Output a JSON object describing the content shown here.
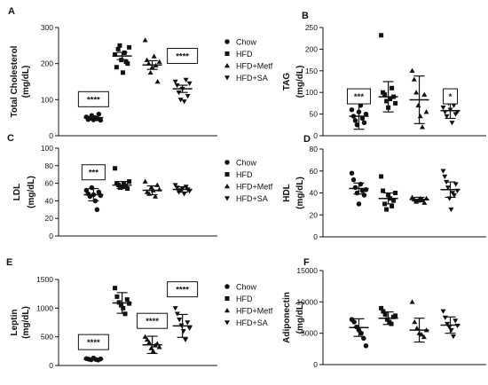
{
  "legend_items": [
    {
      "label": "Chow",
      "marker": "circle"
    },
    {
      "label": "HFD",
      "marker": "square"
    },
    {
      "label": "HFD+Metf",
      "marker": "triangle"
    },
    {
      "label": "HFD+SA",
      "marker": "triangle-down"
    }
  ],
  "chart_data": [
    {
      "panel": "A",
      "type": "scatter",
      "ylabel": "Total Cholesterol",
      "yunit": "(mg/dL)",
      "ylim": [
        0,
        300
      ],
      "yticks": [
        0,
        100,
        200,
        300
      ],
      "categories": [
        "Chow",
        "HFD",
        "HFD+Metf",
        "HFD+SA"
      ],
      "points": [
        [
          52,
          45,
          48,
          56,
          44,
          50,
          47,
          60,
          43
        ],
        [
          225,
          190,
          240,
          250,
          210,
          175,
          230,
          205,
          200,
          245
        ],
        [
          265,
          210,
          200,
          175,
          190,
          220,
          195,
          150,
          205
        ],
        [
          150,
          140,
          120,
          100,
          130,
          95,
          155,
          110,
          145
        ]
      ],
      "means": [
        50,
        221,
        196,
        130
      ],
      "errors": [
        3,
        10,
        12,
        10
      ],
      "annotations": [
        {
          "group": 0,
          "text": "****",
          "y": 100
        },
        {
          "group": 3,
          "text": "****",
          "y": 220
        }
      ]
    },
    {
      "panel": "B",
      "type": "scatter",
      "ylabel": "TAG",
      "yunit": "(mg/dL)",
      "ylim": [
        0,
        250
      ],
      "yticks": [
        0,
        50,
        100,
        150,
        200,
        250
      ],
      "categories": [
        "Chow",
        "HFD",
        "HFD+Metf",
        "HFD+SA"
      ],
      "points": [
        [
          60,
          45,
          35,
          25,
          55,
          70,
          40,
          30,
          50
        ],
        [
          232,
          100,
          95,
          80,
          65,
          85,
          110,
          90,
          75
        ],
        [
          150,
          130,
          100,
          70,
          45,
          20,
          95,
          55
        ],
        [
          65,
          55,
          45,
          75,
          60,
          30,
          70,
          50,
          55
        ]
      ],
      "means": [
        45,
        90,
        83,
        58
      ],
      "errors": [
        30,
        35,
        55,
        18
      ],
      "annotations": [
        {
          "group": 0,
          "text": "***",
          "y": 90
        },
        {
          "group": 3,
          "text": "*",
          "y": 90
        }
      ]
    },
    {
      "panel": "C",
      "type": "scatter",
      "ylabel": "LDL",
      "yunit": "(mg/dL)",
      "ylim": [
        0,
        100
      ],
      "yticks": [
        0,
        20,
        40,
        60,
        80,
        100
      ],
      "categories": [
        "Chow",
        "HFD",
        "HFD+Metf",
        "HFD+SA"
      ],
      "points": [
        [
          52,
          48,
          45,
          55,
          47,
          40,
          30,
          50,
          46
        ],
        [
          77,
          60,
          58,
          55,
          56,
          59,
          57,
          54,
          62
        ],
        [
          62,
          50,
          48,
          55,
          52,
          45,
          58,
          53
        ],
        [
          58,
          55,
          50,
          52,
          54,
          48,
          56,
          53,
          51
        ]
      ],
      "means": [
        47,
        58,
        52,
        53
      ],
      "errors": [
        7,
        4,
        5,
        3
      ],
      "annotations": [
        {
          "group": 0,
          "text": "***",
          "y": 72
        }
      ]
    },
    {
      "panel": "D",
      "type": "scatter",
      "ylabel": "HDL",
      "yunit": "(mg/dL)",
      "ylim": [
        0,
        80
      ],
      "yticks": [
        0,
        20,
        40,
        60,
        80
      ],
      "categories": [
        "Chow",
        "HFD",
        "HFD+Metf",
        "HFD+SA"
      ],
      "points": [
        [
          58,
          52,
          45,
          40,
          30,
          48,
          42,
          38,
          43
        ],
        [
          55,
          42,
          30,
          25,
          38,
          35,
          28,
          33,
          40
        ],
        [
          36,
          34,
          32,
          33,
          35,
          34,
          31,
          35
        ],
        [
          60,
          55,
          50,
          45,
          35,
          25,
          40,
          38,
          48,
          42
        ]
      ],
      "means": [
        44,
        35,
        34,
        43
      ],
      "errors": [
        5,
        5,
        2,
        7
      ],
      "annotations": []
    },
    {
      "panel": "E",
      "type": "scatter",
      "ylabel": "Leptin",
      "yunit": "(mg/dL)",
      "ylim": [
        0,
        1500
      ],
      "yticks": [
        0,
        500,
        1000,
        1500
      ],
      "categories": [
        "Chow",
        "HFD",
        "HFD+Metf",
        "HFD+SA"
      ],
      "points": [
        [
          120,
          110,
          100,
          130,
          105,
          95,
          115
        ],
        [
          1350,
          1200,
          1100,
          1050,
          1000,
          900,
          1150,
          1080
        ],
        [
          500,
          450,
          400,
          300,
          250,
          350,
          380,
          320
        ],
        [
          1000,
          900,
          800,
          700,
          600,
          450,
          750,
          650
        ]
      ],
      "means": [
        110,
        1090,
        360,
        690
      ],
      "errors": [
        15,
        180,
        150,
        200
      ],
      "annotations": [
        {
          "group": 0,
          "text": "****",
          "y": 400
        },
        {
          "group": 2,
          "text": "****",
          "y": 770
        },
        {
          "group": 3,
          "text": "****",
          "y": 1320
        }
      ]
    },
    {
      "panel": "F",
      "type": "scatter",
      "ylabel": "Adiponectin",
      "yunit": "(mg/dL)",
      "ylim": [
        0,
        15000
      ],
      "yticks": [
        0,
        5000,
        10000,
        15000
      ],
      "categories": [
        "Chow",
        "HFD",
        "HFD+Metf",
        "HFD+SA"
      ],
      "points": [
        [
          7200,
          6800,
          6000,
          5500,
          5000,
          4200,
          3000
        ],
        [
          9000,
          8500,
          8000,
          7200,
          6800,
          6500,
          7600,
          7800
        ],
        [
          10000,
          6800,
          5800,
          5000,
          4800,
          4400,
          5500
        ],
        [
          8500,
          7500,
          6500,
          6000,
          5500,
          4500,
          7000,
          6200
        ]
      ],
      "means": [
        5900,
        7400,
        5500,
        6300
      ],
      "errors": [
        1400,
        1000,
        1900,
        1300
      ],
      "annotations": []
    }
  ]
}
